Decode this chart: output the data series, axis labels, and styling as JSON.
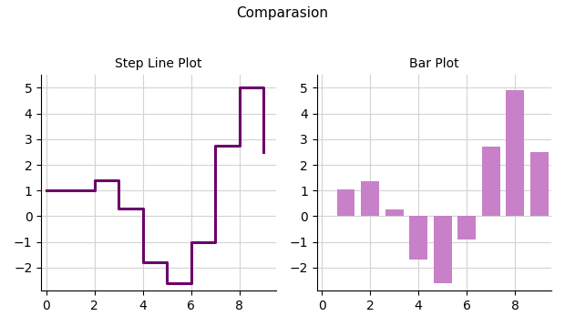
{
  "title": "Comparasion",
  "step_title": "Step Line Plot",
  "bar_title": "Bar Plot",
  "step_x": [
    0,
    1,
    2,
    3,
    4,
    5,
    6,
    7,
    8,
    9
  ],
  "step_y": [
    1,
    1,
    1.4,
    0.3,
    -1.8,
    -2.6,
    -1,
    2.75,
    5,
    2.5
  ],
  "bar_x": [
    1,
    2,
    3,
    4,
    5,
    6,
    7,
    8,
    9
  ],
  "bar_y": [
    1.05,
    1.35,
    0.25,
    -1.7,
    -2.6,
    -0.9,
    2.7,
    4.9,
    2.5
  ],
  "step_color": "#6B006B",
  "bar_color": "#C880C8",
  "step_linewidth": 2.2,
  "bar_width": 0.75,
  "xlim": [
    -0.2,
    9.5
  ],
  "ylim": [
    -2.9,
    5.5
  ],
  "xticks": [
    0,
    2,
    4,
    6,
    8
  ],
  "yticks": [
    -2,
    -1,
    0,
    1,
    2,
    3,
    4,
    5
  ],
  "title_fontsize": 11,
  "subtitle_fontsize": 10,
  "fig_width": 6.2,
  "fig_height": 3.58,
  "dpi": 100
}
